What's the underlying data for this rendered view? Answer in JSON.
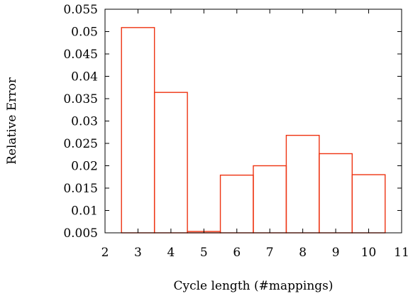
{
  "chart_data": {
    "type": "bar",
    "xlabel": "Cycle length (#mappings)",
    "ylabel": "Relative Error",
    "xlim": [
      2,
      11
    ],
    "ylim": [
      0.005,
      0.055
    ],
    "xticks": [
      "2",
      "3",
      "4",
      "5",
      "6",
      "7",
      "8",
      "9",
      "10",
      "11"
    ],
    "yticks": [
      "0.005",
      "0.01",
      "0.015",
      "0.02",
      "0.025",
      "0.03",
      "0.035",
      "0.04",
      "0.045",
      "0.05",
      "0.055"
    ],
    "categories": [
      3,
      4,
      5,
      6,
      7,
      8,
      9,
      10
    ],
    "values": [
      0.0509,
      0.0364,
      0.0053,
      0.0179,
      0.02,
      0.0268,
      0.0227,
      0.018
    ],
    "bar_style": "outline",
    "bar_color": "#ee3311",
    "grid": false,
    "legend": "none"
  }
}
